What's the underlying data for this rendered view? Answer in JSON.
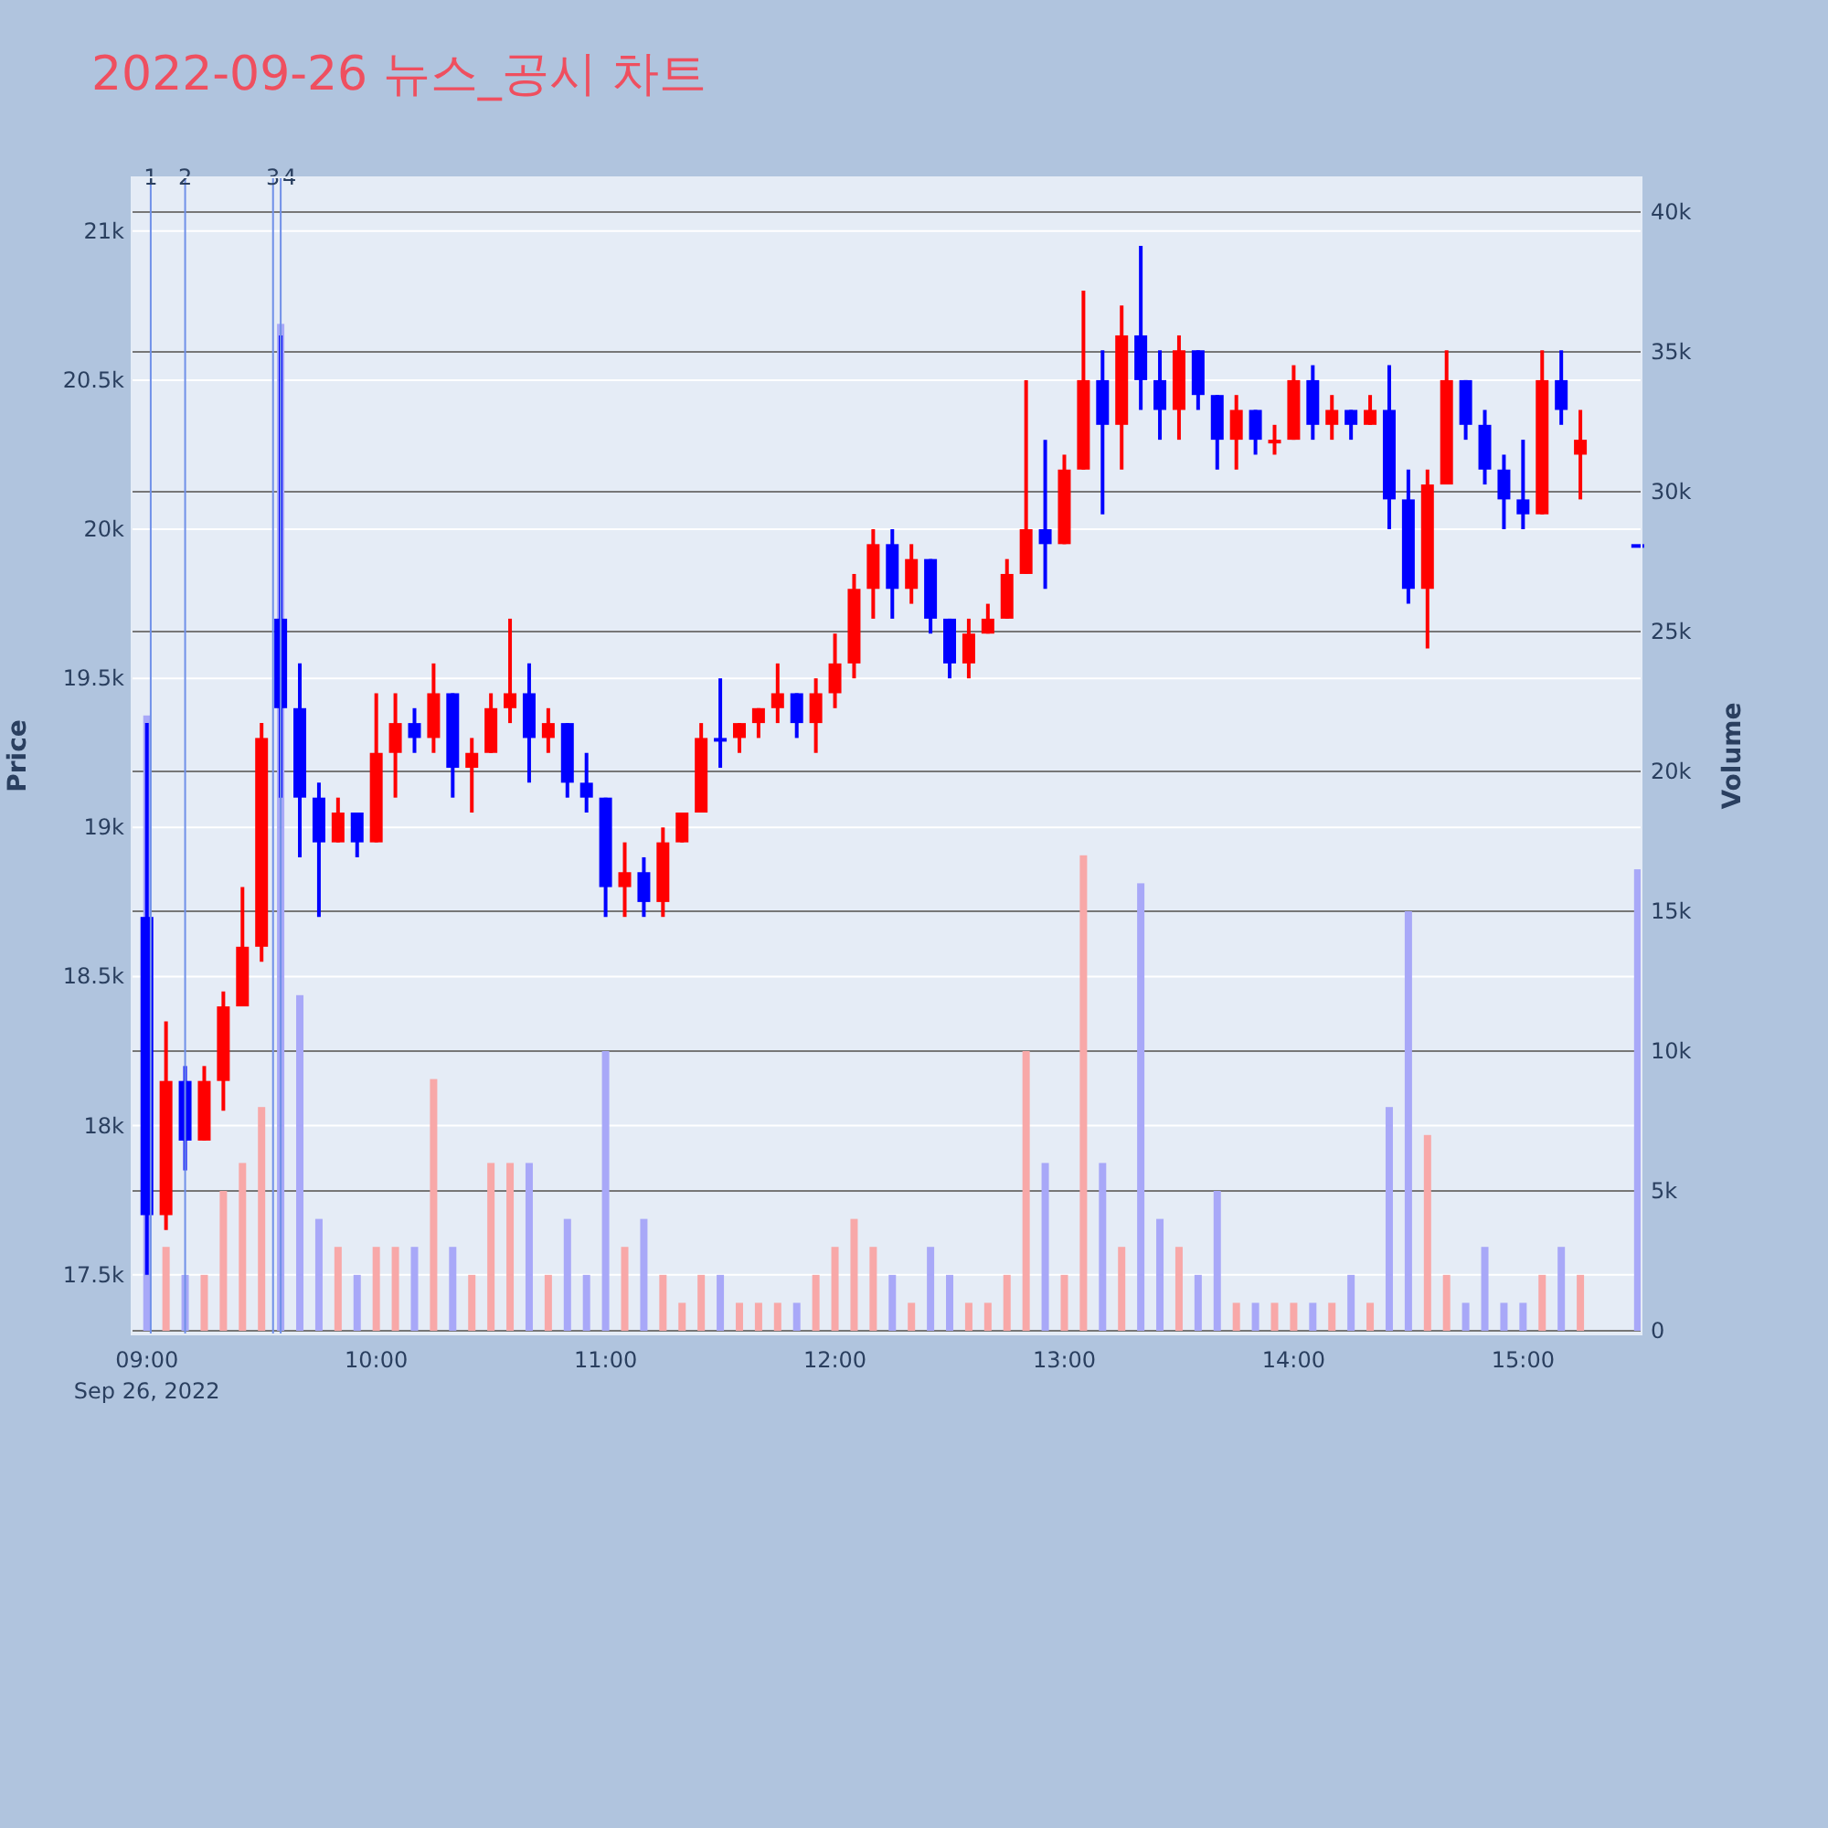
{
  "chart_data": {
    "type": "candlestick",
    "title": "2022-09-26 뉴스_공시 차트",
    "ylabel": "Price",
    "y2label": "Volume",
    "x": [
      "2022-09-26T09:00",
      "2022-09-26T09:05",
      "2022-09-26T09:10",
      "2022-09-26T09:15",
      "2022-09-26T09:20",
      "2022-09-26T09:25",
      "2022-09-26T09:30",
      "2022-09-26T09:35",
      "2022-09-26T09:40",
      "2022-09-26T09:45",
      "2022-09-26T09:50",
      "2022-09-26T09:55",
      "2022-09-26T10:00",
      "2022-09-26T10:05",
      "2022-09-26T10:10",
      "2022-09-26T10:15",
      "2022-09-26T10:20",
      "2022-09-26T10:25",
      "2022-09-26T10:30",
      "2022-09-26T10:35",
      "2022-09-26T10:40",
      "2022-09-26T10:45",
      "2022-09-26T10:50",
      "2022-09-26T10:55",
      "2022-09-26T11:00",
      "2022-09-26T11:05",
      "2022-09-26T11:10",
      "2022-09-26T11:15",
      "2022-09-26T11:20",
      "2022-09-26T11:25",
      "2022-09-26T11:30",
      "2022-09-26T11:35",
      "2022-09-26T11:40",
      "2022-09-26T11:45",
      "2022-09-26T11:50",
      "2022-09-26T11:55",
      "2022-09-26T12:00",
      "2022-09-26T12:05",
      "2022-09-26T12:10",
      "2022-09-26T12:15",
      "2022-09-26T12:20",
      "2022-09-26T12:25",
      "2022-09-26T12:30",
      "2022-09-26T12:35",
      "2022-09-26T12:40",
      "2022-09-26T12:45",
      "2022-09-26T12:50",
      "2022-09-26T12:55",
      "2022-09-26T13:00",
      "2022-09-26T13:05",
      "2022-09-26T13:10",
      "2022-09-26T13:15",
      "2022-09-26T13:20",
      "2022-09-26T13:25",
      "2022-09-26T13:30",
      "2022-09-26T13:35",
      "2022-09-26T13:40",
      "2022-09-26T13:45",
      "2022-09-26T13:50",
      "2022-09-26T13:55",
      "2022-09-26T14:00",
      "2022-09-26T14:05",
      "2022-09-26T14:10",
      "2022-09-26T14:15",
      "2022-09-26T14:20",
      "2022-09-26T14:25",
      "2022-09-26T14:30",
      "2022-09-26T14:35",
      "2022-09-26T14:40",
      "2022-09-26T14:45",
      "2022-09-26T14:50",
      "2022-09-26T14:55",
      "2022-09-26T15:00",
      "2022-09-26T15:05",
      "2022-09-26T15:10",
      "2022-09-26T15:15",
      "2022-09-26T15:30"
    ],
    "ohlc": [
      [
        18700,
        19350,
        17500,
        17700
      ],
      [
        17700,
        18350,
        17650,
        18150
      ],
      [
        18150,
        18200,
        17850,
        17950
      ],
      [
        17950,
        18200,
        17950,
        18150
      ],
      [
        18150,
        18450,
        18050,
        18400
      ],
      [
        18400,
        18800,
        18400,
        18600
      ],
      [
        18600,
        19350,
        18550,
        19300
      ],
      [
        19700,
        20650,
        19100,
        19400
      ],
      [
        19400,
        19550,
        18900,
        19100
      ],
      [
        19100,
        19150,
        18700,
        18950
      ],
      [
        18950,
        19100,
        18950,
        19050
      ],
      [
        19050,
        19050,
        18900,
        18950
      ],
      [
        18950,
        19450,
        18950,
        19250
      ],
      [
        19250,
        19450,
        19100,
        19350
      ],
      [
        19350,
        19400,
        19250,
        19300
      ],
      [
        19300,
        19550,
        19250,
        19450
      ],
      [
        19450,
        19450,
        19100,
        19200
      ],
      [
        19200,
        19300,
        19050,
        19250
      ],
      [
        19250,
        19450,
        19250,
        19400
      ],
      [
        19400,
        19700,
        19350,
        19450
      ],
      [
        19450,
        19550,
        19150,
        19300
      ],
      [
        19300,
        19400,
        19250,
        19350
      ],
      [
        19350,
        19350,
        19100,
        19150
      ],
      [
        19150,
        19250,
        19050,
        19100
      ],
      [
        19100,
        19100,
        18700,
        18800
      ],
      [
        18800,
        18950,
        18700,
        18850
      ],
      [
        18850,
        18900,
        18700,
        18750
      ],
      [
        18750,
        19000,
        18700,
        18950
      ],
      [
        18950,
        19050,
        18950,
        19050
      ],
      [
        19050,
        19350,
        19050,
        19300
      ],
      [
        19300,
        19500,
        19200,
        19300
      ],
      [
        19300,
        19350,
        19250,
        19350
      ],
      [
        19350,
        19400,
        19300,
        19400
      ],
      [
        19400,
        19550,
        19350,
        19450
      ],
      [
        19450,
        19450,
        19300,
        19350
      ],
      [
        19350,
        19500,
        19250,
        19450
      ],
      [
        19450,
        19650,
        19400,
        19550
      ],
      [
        19550,
        19850,
        19500,
        19800
      ],
      [
        19800,
        20000,
        19700,
        19950
      ],
      [
        19950,
        20000,
        19700,
        19800
      ],
      [
        19800,
        19950,
        19750,
        19900
      ],
      [
        19900,
        19900,
        19650,
        19700
      ],
      [
        19700,
        19700,
        19500,
        19550
      ],
      [
        19550,
        19700,
        19500,
        19650
      ],
      [
        19650,
        19750,
        19650,
        19700
      ],
      [
        19700,
        19900,
        19700,
        19850
      ],
      [
        19850,
        20500,
        19850,
        20000
      ],
      [
        20000,
        20300,
        19800,
        19950
      ],
      [
        19950,
        20250,
        19950,
        20200
      ],
      [
        20200,
        20800,
        20200,
        20500
      ],
      [
        20500,
        20600,
        20050,
        20350
      ],
      [
        20350,
        20750,
        20200,
        20650
      ],
      [
        20650,
        20950,
        20400,
        20500
      ],
      [
        20500,
        20600,
        20300,
        20400
      ],
      [
        20400,
        20650,
        20300,
        20600
      ],
      [
        20600,
        20600,
        20400,
        20450
      ],
      [
        20450,
        20450,
        20200,
        20300
      ],
      [
        20300,
        20450,
        20200,
        20400
      ],
      [
        20400,
        20400,
        20250,
        20300
      ],
      [
        20300,
        20350,
        20250,
        20300
      ],
      [
        20300,
        20550,
        20300,
        20500
      ],
      [
        20500,
        20550,
        20300,
        20350
      ],
      [
        20350,
        20450,
        20300,
        20400
      ],
      [
        20400,
        20400,
        20300,
        20350
      ],
      [
        20350,
        20450,
        20350,
        20400
      ],
      [
        20400,
        20550,
        20000,
        20100
      ],
      [
        20100,
        20200,
        19750,
        19800
      ],
      [
        19800,
        20200,
        19600,
        20150
      ],
      [
        20150,
        20600,
        20150,
        20500
      ],
      [
        20500,
        20500,
        20300,
        20350
      ],
      [
        20350,
        20400,
        20150,
        20200
      ],
      [
        20200,
        20250,
        20000,
        20100
      ],
      [
        20100,
        20300,
        20000,
        20050
      ],
      [
        20050,
        20600,
        20050,
        20500
      ],
      [
        20500,
        20600,
        20350,
        20400
      ],
      [
        20250,
        20400,
        20100,
        20300
      ],
      [
        19950,
        19950,
        19950,
        19950
      ]
    ],
    "colors": [
      "#0000ff",
      "#ff0000",
      "#0000ff",
      "#ff0000",
      "#ff0000",
      "#ff0000",
      "#ff0000",
      "#0000ff",
      "#0000ff",
      "#0000ff",
      "#ff0000",
      "#0000ff",
      "#ff0000",
      "#ff0000",
      "#0000ff",
      "#ff0000",
      "#0000ff",
      "#ff0000",
      "#ff0000",
      "#ff0000",
      "#0000ff",
      "#ff0000",
      "#0000ff",
      "#0000ff",
      "#0000ff",
      "#ff0000",
      "#0000ff",
      "#ff0000",
      "#ff0000",
      "#ff0000",
      "#0000ff",
      "#ff0000",
      "#ff0000",
      "#ff0000",
      "#0000ff",
      "#ff0000",
      "#ff0000",
      "#ff0000",
      "#ff0000",
      "#0000ff",
      "#ff0000",
      "#0000ff",
      "#0000ff",
      "#ff0000",
      "#ff0000",
      "#ff0000",
      "#ff0000",
      "#0000ff",
      "#ff0000",
      "#ff0000",
      "#0000ff",
      "#ff0000",
      "#0000ff",
      "#0000ff",
      "#ff0000",
      "#0000ff",
      "#0000ff",
      "#ff0000",
      "#0000ff",
      "#ff0000",
      "#ff0000",
      "#0000ff",
      "#ff0000",
      "#0000ff",
      "#ff0000",
      "#0000ff",
      "#0000ff",
      "#ff0000",
      "#ff0000",
      "#0000ff",
      "#0000ff",
      "#0000ff",
      "#0000ff",
      "#ff0000",
      "#0000ff",
      "#ff0000",
      "#0000ff"
    ],
    "series": [
      {
        "type": "bar",
        "axis": "y2",
        "values": [
          22000,
          3000,
          2000,
          2000,
          5000,
          6000,
          8000,
          36000,
          12000,
          4000,
          3000,
          2000,
          3000,
          3000,
          3000,
          9000,
          3000,
          2000,
          6000,
          6000,
          6000,
          2000,
          4000,
          2000,
          10000,
          3000,
          4000,
          2000,
          1000,
          2000,
          2000,
          1000,
          1000,
          1000,
          1000,
          2000,
          3000,
          4000,
          3000,
          2000,
          1000,
          3000,
          2000,
          1000,
          1000,
          2000,
          10000,
          6000,
          2000,
          17000,
          6000,
          3000,
          16000,
          4000,
          3000,
          2000,
          5000,
          1000,
          1000,
          1000,
          1000,
          1000,
          1000,
          2000,
          1000,
          8000,
          15000,
          7000,
          2000,
          1000,
          3000,
          1000,
          1000,
          2000,
          3000,
          2000,
          16500
        ],
        "colors": [
          "#a8a8f8",
          "#f8a8a8",
          "#a8a8f8",
          "#f8a8a8",
          "#f8a8a8",
          "#f8a8a8",
          "#f8a8a8",
          "#a8a8f8",
          "#a8a8f8",
          "#a8a8f8",
          "#f8a8a8",
          "#a8a8f8",
          "#f8a8a8",
          "#f8a8a8",
          "#a8a8f8",
          "#f8a8a8",
          "#a8a8f8",
          "#f8a8a8",
          "#f8a8a8",
          "#f8a8a8",
          "#a8a8f8",
          "#f8a8a8",
          "#a8a8f8",
          "#a8a8f8",
          "#a8a8f8",
          "#f8a8a8",
          "#a8a8f8",
          "#f8a8a8",
          "#f8a8a8",
          "#f8a8a8",
          "#a8a8f8",
          "#f8a8a8",
          "#f8a8a8",
          "#f8a8a8",
          "#a8a8f8",
          "#f8a8a8",
          "#f8a8a8",
          "#f8a8a8",
          "#f8a8a8",
          "#a8a8f8",
          "#f8a8a8",
          "#a8a8f8",
          "#a8a8f8",
          "#f8a8a8",
          "#f8a8a8",
          "#f8a8a8",
          "#f8a8a8",
          "#a8a8f8",
          "#f8a8a8",
          "#f8a8a8",
          "#a8a8f8",
          "#f8a8a8",
          "#a8a8f8",
          "#a8a8f8",
          "#f8a8a8",
          "#a8a8f8",
          "#a8a8f8",
          "#f8a8a8",
          "#a8a8f8",
          "#f8a8a8",
          "#f8a8a8",
          "#a8a8f8",
          "#f8a8a8",
          "#a8a8f8",
          "#f8a8a8",
          "#a8a8f8",
          "#a8a8f8",
          "#f8a8a8",
          "#f8a8a8",
          "#a8a8f8",
          "#a8a8f8",
          "#a8a8f8",
          "#a8a8f8",
          "#f8a8a8",
          "#a8a8f8",
          "#f8a8a8",
          "#a8a8f8"
        ]
      }
    ],
    "xlim": [
      "2022-09-26T08:56",
      "2022-09-26T15:31"
    ],
    "xticks": [
      {
        "value": "2022-09-26T09:00",
        "label": "09:00\nSep 26, 2022"
      },
      {
        "value": "2022-09-26T10:00",
        "label": "10:00"
      },
      {
        "value": "2022-09-26T11:00",
        "label": "11:00"
      },
      {
        "value": "2022-09-26T12:00",
        "label": "12:00"
      },
      {
        "value": "2022-09-26T13:00",
        "label": "13:00"
      },
      {
        "value": "2022-09-26T14:00",
        "label": "14:00"
      },
      {
        "value": "2022-09-26T15:00",
        "label": "15:00"
      }
    ],
    "ylim": [
      17300,
      21180
    ],
    "yticks": [
      {
        "value": 17500,
        "label": "17.5k"
      },
      {
        "value": 18000,
        "label": "18k"
      },
      {
        "value": 18500,
        "label": "18.5k"
      },
      {
        "value": 19000,
        "label": "19k"
      },
      {
        "value": 19500,
        "label": "19.5k"
      },
      {
        "value": 20000,
        "label": "20k"
      },
      {
        "value": 20500,
        "label": "20.5k"
      },
      {
        "value": 21000,
        "label": "21k"
      }
    ],
    "y2lim": [
      -130,
      41240
    ],
    "y2ticks": [
      0,
      {
        "value": 5000,
        "label": "5k"
      },
      {
        "value": 10000,
        "label": "10k"
      },
      {
        "value": 15000,
        "label": "15k"
      },
      {
        "value": 20000,
        "label": "20k"
      },
      {
        "value": 25000,
        "label": "25k"
      },
      {
        "value": 30000,
        "label": "30k"
      },
      {
        "value": 35000,
        "label": "35k"
      },
      {
        "value": 40000,
        "label": "40k"
      }
    ],
    "ref_lines": [
      {
        "axis": "x",
        "value": "2022-09-26T09:01",
        "label": "1",
        "color": "#7090e8"
      },
      {
        "axis": "x",
        "value": "2022-09-26T09:10",
        "label": "2",
        "color": "#7090e8"
      },
      {
        "axis": "x",
        "value": "2022-09-26T09:33",
        "label": "3",
        "color": "#7090e8"
      },
      {
        "axis": "x",
        "value": "2022-09-26T09:35",
        "label": "4",
        "color": "#7090e8"
      }
    ],
    "grid": "y"
  }
}
